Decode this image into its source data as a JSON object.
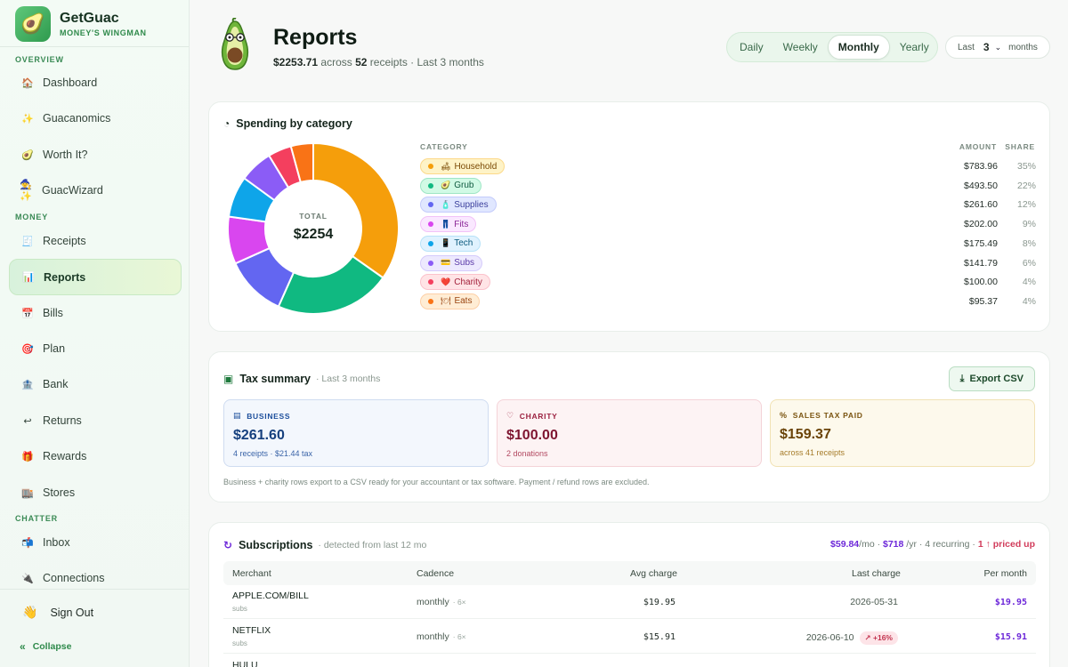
{
  "brand": {
    "name": "GetGuac",
    "tagline": "MONEY'S WINGMAN"
  },
  "sidebar": {
    "sections": {
      "overview": "OVERVIEW",
      "money": "MONEY",
      "chatter": "CHATTER"
    },
    "items": [
      {
        "id": "dashboard",
        "label": "Dashboard",
        "icon": "🏠"
      },
      {
        "id": "guacanomics",
        "label": "Guacanomics",
        "icon": "✨"
      },
      {
        "id": "worthit",
        "label": "Worth It?",
        "icon": "🥑"
      },
      {
        "id": "guacwizard",
        "label": "GuacWizard",
        "icon": "🧙✨"
      },
      {
        "id": "receipts",
        "label": "Receipts",
        "icon": "🧾"
      },
      {
        "id": "reports",
        "label": "Reports",
        "icon": "📊"
      },
      {
        "id": "bills",
        "label": "Bills",
        "icon": "📅"
      },
      {
        "id": "plan",
        "label": "Plan",
        "icon": "🎯"
      },
      {
        "id": "bank",
        "label": "Bank",
        "icon": "🏦"
      },
      {
        "id": "returns",
        "label": "Returns",
        "icon": "↩"
      },
      {
        "id": "rewards",
        "label": "Rewards",
        "icon": "🎁"
      },
      {
        "id": "stores",
        "label": "Stores",
        "icon": "🏬"
      },
      {
        "id": "inbox",
        "label": "Inbox",
        "icon": "📬"
      },
      {
        "id": "connections",
        "label": "Connections",
        "icon": "🔌"
      }
    ],
    "signout": "Sign Out",
    "collapse": "Collapse"
  },
  "header": {
    "title": "Reports",
    "total": "$2253.71",
    "across": "across",
    "receipts_count": "52",
    "receipts_word": "receipts",
    "period": "· Last 3 months",
    "periods": [
      "Daily",
      "Weekly",
      "Monthly",
      "Yearly"
    ],
    "active_period": "Monthly",
    "range_prefix": "Last",
    "range_value": "3",
    "range_suffix": "months"
  },
  "spending": {
    "title": "Spending by category",
    "total_label": "TOTAL",
    "total_value": "$2254",
    "head_category": "CATEGORY",
    "head_amount": "AMOUNT",
    "head_share": "SHARE"
  },
  "chart_data": {
    "type": "pie",
    "title": "Spending by category",
    "categories": [
      "Household",
      "Grub",
      "Supplies",
      "Fits",
      "Tech",
      "Subs",
      "Charity",
      "Eats"
    ],
    "values": [
      783.96,
      493.5,
      261.6,
      202.0,
      175.49,
      141.79,
      100.0,
      95.37
    ],
    "amount_labels": [
      "$783.96",
      "$493.50",
      "$261.60",
      "$202.00",
      "$175.49",
      "$141.79",
      "$100.00",
      "$95.37"
    ],
    "share_labels": [
      "35%",
      "22%",
      "12%",
      "9%",
      "8%",
      "6%",
      "4%",
      "4%"
    ],
    "emojis": [
      "🛋",
      "🥑",
      "🧴",
      "👖",
      "📱",
      "💳",
      "❤️",
      "🍽"
    ],
    "colors": [
      "#f59e0b",
      "#10b981",
      "#6366f1",
      "#d946ef",
      "#0ea5e9",
      "#8b5cf6",
      "#f43f5e",
      "#f97316"
    ],
    "chip_bg": [
      "#fef3c7",
      "#d1fae5",
      "#e0e7ff",
      "#fae8ff",
      "#e0f2fe",
      "#ede9fe",
      "#ffe4e6",
      "#ffedd5"
    ],
    "chip_border": [
      "#fcd98a",
      "#9ee6c5",
      "#c3cbfb",
      "#f2c2f8",
      "#b7e2f8",
      "#d5cbfb",
      "#fbc2cb",
      "#fdd0a7"
    ],
    "chip_text": [
      "#7a4a05",
      "#0f5a3f",
      "#3b3f9c",
      "#8a2596",
      "#0c5a7d",
      "#5b3aa8",
      "#a21f3a",
      "#9a4410"
    ]
  },
  "tax": {
    "title": "Tax summary",
    "period": "· Last 3 months",
    "export_label": "Export CSV",
    "boxes": [
      {
        "label": "BUSINESS",
        "value": "$261.60",
        "sub": "4 receipts · $21.44 tax"
      },
      {
        "label": "CHARITY",
        "value": "$100.00",
        "sub": "2 donations"
      },
      {
        "label": "SALES TAX PAID",
        "value": "$159.37",
        "sub": "across 41 receipts"
      }
    ],
    "note": "Business + charity rows export to a CSV ready for your accountant or tax software. Payment / refund rows are excluded."
  },
  "subscriptions": {
    "title": "Subscriptions",
    "detected": "· detected from last 12 mo",
    "per_month": "$59.84",
    "per_month_unit": "/mo ·",
    "per_year": "$718",
    "per_year_unit": "/yr · 4 recurring ·",
    "priced_up": "1 ↑ priced up",
    "columns": [
      "Merchant",
      "Cadence",
      "Avg charge",
      "Last charge",
      "Per month"
    ],
    "rows": [
      {
        "merchant": "APPLE.COM/BILL",
        "tag": "subs",
        "cadence": "monthly",
        "count": "· 6×",
        "avg": "$19.95",
        "last": "2026-05-31",
        "badge": "",
        "per_month": "$19.95"
      },
      {
        "merchant": "NETFLIX",
        "tag": "subs",
        "cadence": "monthly",
        "count": "· 6×",
        "avg": "$15.91",
        "last": "2026-06-10",
        "badge": "↗ +16%",
        "per_month": "$15.91"
      },
      {
        "merchant": "HULU",
        "tag": "",
        "cadence": "",
        "count": "",
        "avg": "",
        "last": "",
        "badge": "",
        "per_month": ""
      }
    ]
  }
}
